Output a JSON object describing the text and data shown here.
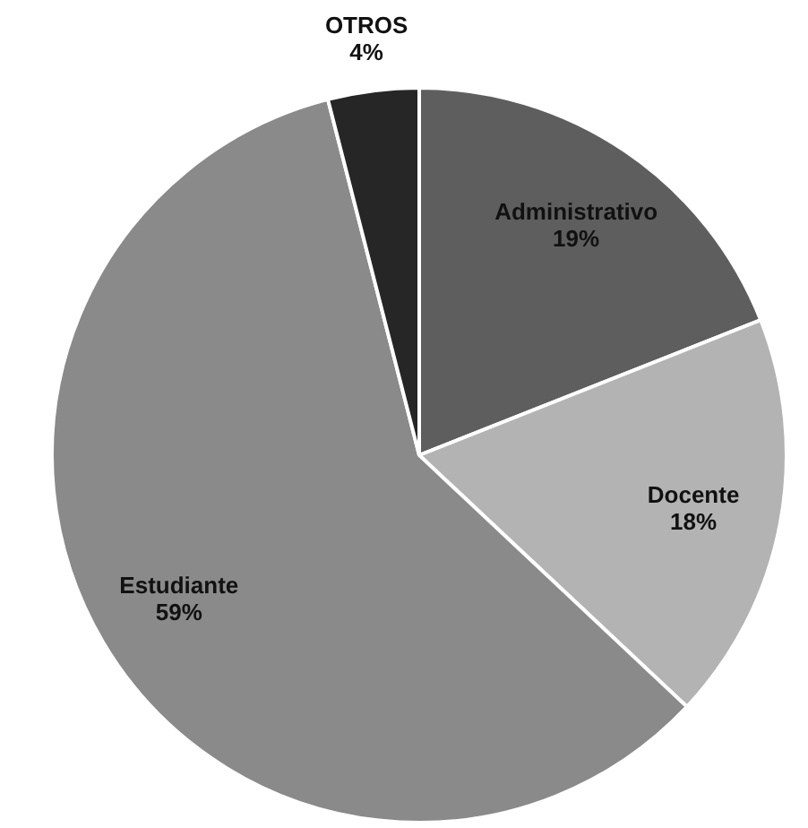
{
  "chart_data": {
    "type": "pie",
    "categories": [
      "Administrativo",
      "Docente",
      "Estudiante",
      "OTROS"
    ],
    "values": [
      19,
      18,
      59,
      4
    ],
    "value_labels": [
      "19%",
      "18%",
      "59%",
      "4%"
    ],
    "colors": [
      "#5e5e5e",
      "#b3b3b3",
      "#8a8a8a",
      "#262626"
    ]
  }
}
